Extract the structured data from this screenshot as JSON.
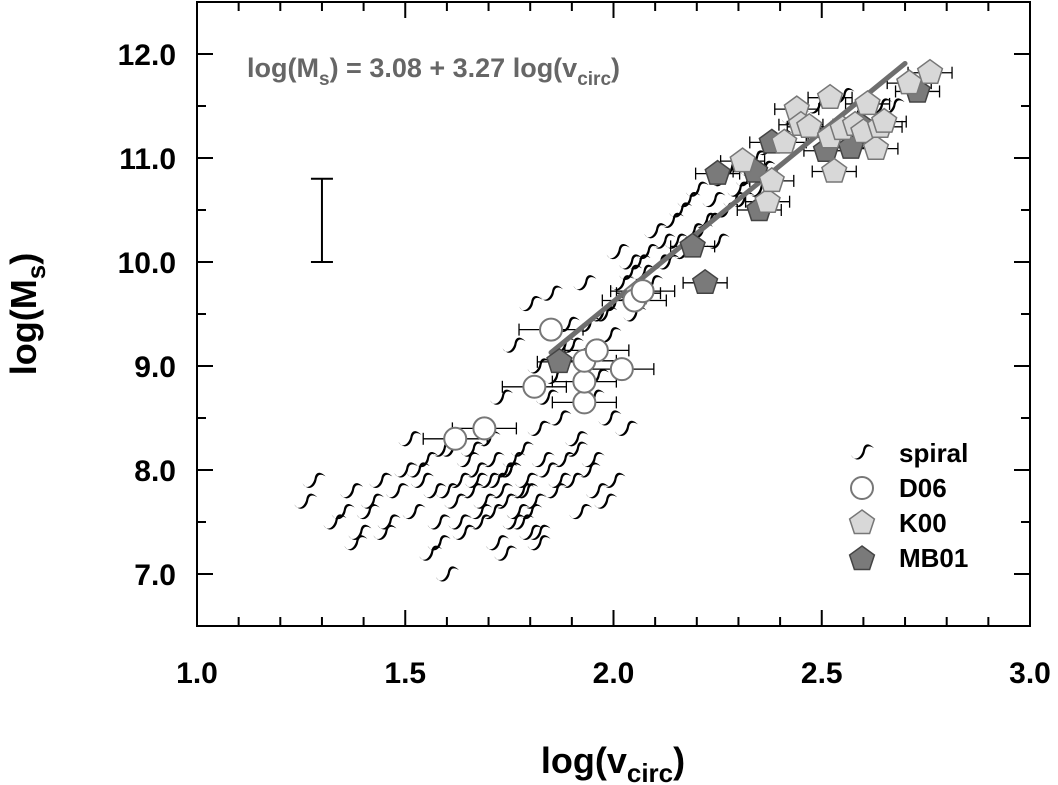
{
  "chart_data": {
    "type": "scatter",
    "xlabel": "log(vcirc)",
    "ylabel": "log(Ms)",
    "xlim": [
      1.0,
      3.0
    ],
    "ylim": [
      6.5,
      12.5
    ],
    "x_ticks": [
      "1.0",
      "1.5",
      "2.0",
      "2.5",
      "3.0"
    ],
    "y_ticks": [
      "7.0",
      "8.0",
      "9.0",
      "10.0",
      "11.0",
      "12.0"
    ],
    "annotation": {
      "text_parts": [
        "log(M",
        "s",
        ") = 3.08 + 3.27 log(v",
        "circ",
        ")"
      ],
      "position": "top-left"
    },
    "fit_line": {
      "intercept": 3.08,
      "slope": 3.27,
      "x_range": [
        1.85,
        2.7
      ],
      "color": "#6e6e6e"
    },
    "typical_error_bar": {
      "x": 1.3,
      "y_low": 10.0,
      "y_high": 10.8
    },
    "legend": {
      "placement": "bottom-right",
      "entries": [
        {
          "label": "spiral",
          "marker": "spiral-icon"
        },
        {
          "label": "D06",
          "marker": "open-circle",
          "color": "#ffffff"
        },
        {
          "label": "K00",
          "marker": "pentagon",
          "color": "#d8d8d8"
        },
        {
          "label": "MB01",
          "marker": "pentagon",
          "color": "#7a7a7a"
        }
      ]
    },
    "series": [
      {
        "name": "spiral",
        "x": [
          1.26,
          1.28,
          1.33,
          1.37,
          1.39,
          1.41,
          1.44,
          1.46,
          1.35,
          1.38,
          1.42,
          1.45,
          1.48,
          1.5,
          1.52,
          1.54,
          1.56,
          1.58,
          1.6,
          1.62,
          1.64,
          1.66,
          1.68,
          1.7,
          1.72,
          1.74,
          1.76,
          1.78,
          1.8,
          1.82,
          1.55,
          1.57,
          1.61,
          1.63,
          1.67,
          1.69,
          1.71,
          1.73,
          1.75,
          1.77,
          1.79,
          1.81,
          1.84,
          1.86,
          1.88,
          1.9,
          1.92,
          1.94,
          1.96,
          1.98,
          1.51,
          1.53,
          1.59,
          1.65,
          1.7,
          1.74,
          1.78,
          1.82,
          1.86,
          1.9,
          1.94,
          1.97,
          2.0,
          2.02,
          2.04,
          2.06,
          2.08,
          2.1,
          2.12,
          2.14,
          2.16,
          2.18,
          2.2,
          2.22,
          2.24,
          2.26,
          2.28,
          2.3,
          2.32,
          2.34,
          2.36,
          1.99,
          2.03,
          2.07,
          2.11,
          2.15,
          2.19,
          2.23,
          2.27,
          2.31,
          2.35,
          2.05,
          2.09,
          2.13,
          2.17,
          2.21,
          2.25,
          2.29,
          2.33,
          2.37,
          2.4,
          2.43,
          2.46,
          2.49,
          2.52,
          2.55,
          2.58,
          2.61,
          2.64,
          2.67,
          1.82,
          1.84,
          1.88,
          1.92,
          1.96,
          1.73,
          1.76,
          1.8,
          1.85,
          1.89,
          1.93,
          1.98,
          2.01,
          2.04,
          1.87,
          1.91,
          1.95,
          1.99,
          2.03,
          1.63,
          1.67,
          1.71,
          1.75,
          1.79,
          1.83,
          1.87,
          1.91,
          1.95,
          2.0,
          1.58,
          1.6,
          1.66,
          1.68,
          1.72,
          1.76,
          1.8,
          1.74,
          1.78,
          1.82
        ],
        "y": [
          7.7,
          7.9,
          7.5,
          7.8,
          7.4,
          7.6,
          7.9,
          7.5,
          7.6,
          7.3,
          7.7,
          7.4,
          7.8,
          8.0,
          7.6,
          7.9,
          7.2,
          7.5,
          7.0,
          7.7,
          7.4,
          7.8,
          7.6,
          7.9,
          7.3,
          7.7,
          7.5,
          7.8,
          7.6,
          7.4,
          8.1,
          7.8,
          8.2,
          7.9,
          8.0,
          7.7,
          8.1,
          7.8,
          8.0,
          7.6,
          7.9,
          7.7,
          8.0,
          7.8,
          8.1,
          7.9,
          7.6,
          8.0,
          7.8,
          7.7,
          8.3,
          8.0,
          8.2,
          8.1,
          8.3,
          8.0,
          8.2,
          8.4,
          8.9,
          9.2,
          9.4,
          9.5,
          9.6,
          9.8,
          9.9,
          10.0,
          10.1,
          10.3,
          10.2,
          10.4,
          10.5,
          10.6,
          10.7,
          10.4,
          10.6,
          10.8,
          10.9,
          10.7,
          10.8,
          11.0,
          10.9,
          9.3,
          9.7,
          9.9,
          10.0,
          10.2,
          10.3,
          10.4,
          10.5,
          10.6,
          10.7,
          9.5,
          9.8,
          10.0,
          10.1,
          10.3,
          10.2,
          10.6,
          10.9,
          11.1,
          11.2,
          11.4,
          11.3,
          11.5,
          11.3,
          11.6,
          11.4,
          11.5,
          11.5,
          11.5,
          9.0,
          8.7,
          9.2,
          9.1,
          8.9,
          8.7,
          9.2,
          9.6,
          9.7,
          9.4,
          9.8,
          9.5,
          10.1,
          10.0,
          8.5,
          8.2,
          8.7,
          8.5,
          8.4,
          7.5,
          7.9,
          7.6,
          8.0,
          7.8,
          8.1,
          7.9,
          8.3,
          8.1,
          7.9,
          7.3,
          7.8,
          8.2,
          7.5,
          7.9,
          8.1,
          7.4,
          7.2,
          7.5,
          7.3
        ]
      },
      {
        "name": "D06",
        "x": [
          1.62,
          1.69,
          1.81,
          1.85,
          1.93,
          1.93,
          1.93,
          1.96,
          2.02,
          2.05,
          2.07
        ],
        "y": [
          8.3,
          8.4,
          8.8,
          9.35,
          8.65,
          8.85,
          9.05,
          9.15,
          8.97,
          9.63,
          9.72
        ]
      },
      {
        "name": "K00",
        "x": [
          2.06,
          2.31,
          2.37,
          2.41,
          2.44,
          2.45,
          2.47,
          2.52,
          2.52,
          2.53,
          2.55,
          2.58,
          2.6,
          2.61,
          2.63,
          2.64,
          2.65,
          2.71,
          2.76,
          2.38
        ],
        "y": [
          9.7,
          10.97,
          10.58,
          11.15,
          11.47,
          11.32,
          11.3,
          11.58,
          11.2,
          10.87,
          11.28,
          11.32,
          11.25,
          11.52,
          11.09,
          11.3,
          11.35,
          11.72,
          11.82,
          10.78
        ]
      },
      {
        "name": "MB01",
        "x": [
          1.87,
          2.19,
          2.22,
          2.25,
          2.34,
          2.35,
          2.38,
          2.51,
          2.57,
          2.59,
          2.73
        ],
        "y": [
          9.04,
          10.15,
          9.8,
          10.85,
          10.87,
          10.5,
          11.15,
          11.07,
          11.1,
          11.32,
          11.64
        ]
      }
    ]
  }
}
